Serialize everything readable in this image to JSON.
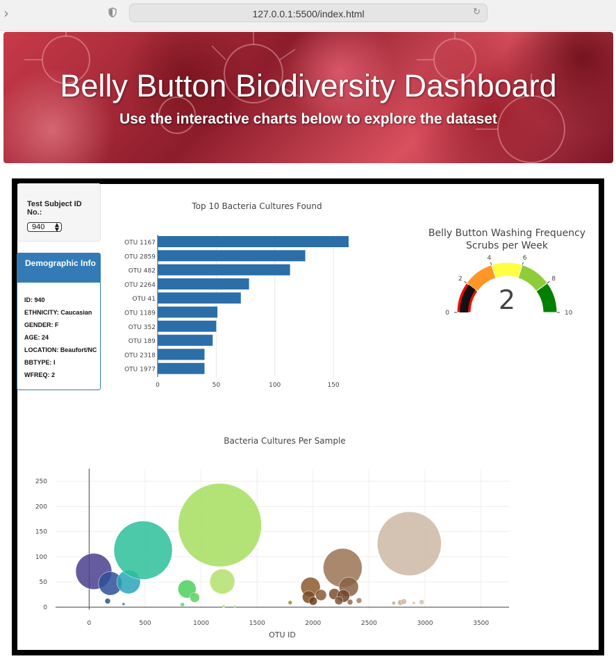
{
  "browser": {
    "url": "127.0.0.1:5500/index.html"
  },
  "jumbotron": {
    "title": "Belly Button Biodiversity Dashboard",
    "subtitle": "Use the interactive charts below to explore the dataset"
  },
  "selector": {
    "label": "Test Subject ID No.:",
    "selected": "940"
  },
  "demographic": {
    "heading": "Demographic Info",
    "lines": [
      "ID: 940",
      "ETHNICITY: Caucasian",
      "GENDER: F",
      "AGE: 24",
      "LOCATION: Beaufort/NC",
      "BBTYPE: I",
      "WFREQ: 2"
    ]
  },
  "colors": {
    "bar": "#2c6ea8",
    "panel": "#337ab7"
  },
  "chart_data": [
    {
      "type": "bar",
      "orientation": "horizontal",
      "title": "Top 10 Bacteria Cultures Found",
      "categories": [
        "OTU 1167",
        "OTU 2859",
        "OTU 482",
        "OTU 2264",
        "OTU 41",
        "OTU 1189",
        "OTU 352",
        "OTU 189",
        "OTU 2318",
        "OTU 1977"
      ],
      "values": [
        163,
        126,
        113,
        78,
        71,
        51,
        50,
        47,
        40,
        40
      ],
      "xticks": [
        0,
        50,
        100,
        150
      ],
      "xlim": [
        0,
        163
      ],
      "grid": true
    },
    {
      "type": "gauge",
      "title": "Belly Button Washing Frequency",
      "subtitle": "Scrubs per Week",
      "value": 2,
      "range": [
        0,
        10
      ],
      "ticks": [
        0,
        2,
        4,
        6,
        8,
        10
      ],
      "steps": [
        {
          "range": [
            0,
            2
          ],
          "color": "#ff0000"
        },
        {
          "range": [
            2,
            4
          ],
          "color": "#ff9626"
        },
        {
          "range": [
            4,
            6
          ],
          "color": "#ffff44"
        },
        {
          "range": [
            6,
            8
          ],
          "color": "#8fcc3a"
        },
        {
          "range": [
            8,
            10
          ],
          "color": "#008000"
        }
      ]
    },
    {
      "type": "scatter",
      "title": "Bacteria Cultures Per Sample",
      "xlabel": "OTU ID",
      "xticks": [
        0,
        500,
        1000,
        1500,
        2000,
        2500,
        3000,
        3500
      ],
      "yticks": [
        0,
        50,
        100,
        150,
        200,
        250
      ],
      "xlim": [
        -300,
        3750
      ],
      "ylim": [
        -5,
        275
      ],
      "grid": true,
      "points": [
        {
          "x": 41,
          "y": 71,
          "r": 26,
          "color": "#4a3f8f"
        },
        {
          "x": 189,
          "y": 47,
          "r": 17,
          "color": "#2f4f96"
        },
        {
          "x": 165,
          "y": 12,
          "r": 4,
          "color": "#2f4f96"
        },
        {
          "x": 307,
          "y": 6,
          "r": 2,
          "color": "#2f5e9e"
        },
        {
          "x": 352,
          "y": 50,
          "r": 17,
          "color": "#2aa6b8"
        },
        {
          "x": 482,
          "y": 113,
          "r": 42,
          "color": "#2bbf9a"
        },
        {
          "x": 874,
          "y": 36,
          "r": 13,
          "color": "#4cd05a"
        },
        {
          "x": 943,
          "y": 19,
          "r": 7,
          "color": "#5fd060"
        },
        {
          "x": 833,
          "y": 5,
          "r": 3,
          "color": "#69d36a"
        },
        {
          "x": 1167,
          "y": 163,
          "r": 60,
          "color": "#a6de5e"
        },
        {
          "x": 1189,
          "y": 51,
          "r": 18,
          "color": "#b4e06c"
        },
        {
          "x": 1200,
          "y": 2,
          "r": 2,
          "color": "#b9df6f"
        },
        {
          "x": 1300,
          "y": 2,
          "r": 1.5,
          "color": "#c2de79"
        },
        {
          "x": 1795,
          "y": 9,
          "r": 3,
          "color": "#a58d37"
        },
        {
          "x": 1977,
          "y": 40,
          "r": 14,
          "color": "#8b5a2b"
        },
        {
          "x": 1960,
          "y": 20,
          "r": 9,
          "color": "#7a4b22"
        },
        {
          "x": 2000,
          "y": 12,
          "r": 6,
          "color": "#6e3f1b"
        },
        {
          "x": 2070,
          "y": 24,
          "r": 8,
          "color": "#8a5a35"
        },
        {
          "x": 2264,
          "y": 78,
          "r": 28,
          "color": "#9a7355"
        },
        {
          "x": 2318,
          "y": 40,
          "r": 14,
          "color": "#8a6245"
        },
        {
          "x": 2190,
          "y": 26,
          "r": 8,
          "color": "#7a4e31"
        },
        {
          "x": 2270,
          "y": 22,
          "r": 9,
          "color": "#6e4428"
        },
        {
          "x": 2230,
          "y": 13,
          "r": 6,
          "color": "#7d5538"
        },
        {
          "x": 2330,
          "y": 10,
          "r": 4,
          "color": "#8e6a4f"
        },
        {
          "x": 2410,
          "y": 13,
          "r": 4,
          "color": "#a07e63"
        },
        {
          "x": 2859,
          "y": 126,
          "r": 46,
          "color": "#cdb8a5"
        },
        {
          "x": 2720,
          "y": 8,
          "r": 2.5,
          "color": "#c0a792"
        },
        {
          "x": 2780,
          "y": 9,
          "r": 4,
          "color": "#c9b09b"
        },
        {
          "x": 2810,
          "y": 11,
          "r": 4,
          "color": "#cdb5a1"
        },
        {
          "x": 2900,
          "y": 8,
          "r": 2,
          "color": "#d0baa7"
        },
        {
          "x": 2970,
          "y": 10,
          "r": 3.5,
          "color": "#d4c0ae"
        }
      ]
    }
  ]
}
